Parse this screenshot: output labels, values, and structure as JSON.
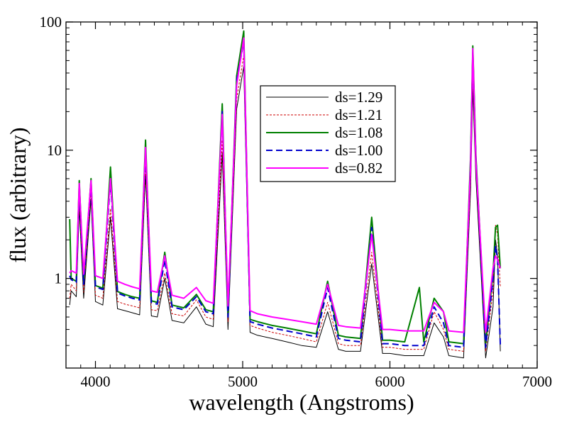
{
  "chart_data": {
    "type": "line",
    "title": "",
    "xlabel": "wavelength (Angstroms)",
    "ylabel": "flux (arbitrary)",
    "xlim": [
      3800,
      7000
    ],
    "ylim": [
      0.2,
      100
    ],
    "yscale": "log",
    "x_ticks": [
      4000,
      5000,
      6000,
      7000
    ],
    "x_tick_labels": [
      "4000",
      "5000",
      "6000",
      "7000"
    ],
    "y_ticks": [
      1,
      10,
      100
    ],
    "y_tick_labels": [
      "1",
      "10",
      "100"
    ],
    "grid": false,
    "legend_position": "top-center",
    "x": [
      3825,
      3835,
      3870,
      3890,
      3920,
      3970,
      4000,
      4050,
      4102,
      4150,
      4200,
      4250,
      4300,
      4340,
      4380,
      4420,
      4471,
      4520,
      4600,
      4686,
      4750,
      4800,
      4861,
      4900,
      4959,
      5007,
      5050,
      5100,
      5200,
      5300,
      5400,
      5500,
      5577,
      5650,
      5700,
      5800,
      5876,
      5950,
      6000,
      6100,
      6200,
      6230,
      6300,
      6364,
      6400,
      6500,
      6548,
      6563,
      6584,
      6650,
      6700,
      6717,
      6731,
      6750
    ],
    "series": [
      {
        "name": "ds=1.29",
        "color": "#000000",
        "dash": "",
        "values": [
          0.62,
          0.8,
          0.72,
          3.5,
          0.7,
          4.2,
          0.66,
          0.62,
          3.0,
          0.58,
          0.56,
          0.54,
          0.52,
          6.5,
          0.51,
          0.5,
          1.0,
          0.47,
          0.45,
          0.6,
          0.44,
          0.42,
          9.5,
          0.4,
          21.0,
          45.0,
          0.38,
          0.36,
          0.34,
          0.32,
          0.3,
          0.29,
          0.55,
          0.28,
          0.27,
          0.27,
          1.3,
          0.26,
          0.26,
          0.25,
          0.25,
          0.25,
          0.45,
          0.35,
          0.25,
          0.24,
          5.0,
          30.0,
          6.0,
          0.24,
          0.6,
          2.0,
          1.5,
          0.27
        ]
      },
      {
        "name": "ds=1.21",
        "color": "#cc0000",
        "dash": "3 2",
        "values": [
          0.7,
          0.9,
          0.8,
          4.0,
          0.78,
          4.8,
          0.74,
          0.7,
          3.5,
          0.66,
          0.63,
          0.61,
          0.59,
          7.5,
          0.57,
          0.56,
          1.1,
          0.53,
          0.51,
          0.68,
          0.5,
          0.48,
          12.0,
          0.46,
          25.0,
          55.0,
          0.43,
          0.41,
          0.38,
          0.36,
          0.34,
          0.32,
          0.65,
          0.31,
          0.3,
          0.3,
          1.6,
          0.29,
          0.29,
          0.28,
          0.28,
          0.28,
          0.55,
          0.4,
          0.28,
          0.27,
          6.0,
          40.0,
          7.5,
          0.27,
          0.8,
          2.6,
          2.2,
          0.85
        ]
      },
      {
        "name": "ds=1.08",
        "color": "#008000",
        "dash": "",
        "values": [
          2.9,
          1.0,
          0.95,
          5.8,
          0.92,
          6.0,
          0.88,
          0.84,
          7.4,
          0.79,
          0.75,
          0.72,
          0.7,
          12.0,
          0.67,
          0.65,
          1.6,
          0.62,
          0.59,
          0.75,
          0.57,
          0.55,
          23.0,
          0.52,
          38.0,
          85.0,
          0.48,
          0.46,
          0.43,
          0.41,
          0.39,
          0.37,
          0.95,
          0.36,
          0.35,
          0.34,
          3.0,
          0.33,
          0.33,
          0.32,
          0.85,
          0.32,
          0.7,
          0.55,
          0.32,
          0.31,
          9.0,
          65.0,
          9.0,
          0.31,
          1.1,
          2.5,
          2.6,
          1.2
        ]
      },
      {
        "name": "ds=1.00",
        "color": "#0000cc",
        "dash": "9 5",
        "values": [
          1.05,
          0.98,
          0.93,
          5.0,
          0.9,
          5.5,
          0.86,
          0.82,
          5.8,
          0.77,
          0.73,
          0.7,
          0.68,
          10.0,
          0.65,
          0.63,
          1.4,
          0.6,
          0.57,
          0.72,
          0.55,
          0.53,
          20.0,
          0.5,
          35.0,
          70.0,
          0.46,
          0.44,
          0.41,
          0.39,
          0.37,
          0.35,
          0.85,
          0.34,
          0.33,
          0.32,
          2.5,
          0.31,
          0.31,
          0.3,
          0.3,
          0.3,
          0.6,
          0.45,
          0.3,
          0.29,
          8.0,
          58.0,
          8.5,
          0.29,
          1.0,
          1.8,
          1.4,
          0.3
        ]
      },
      {
        "name": "ds=0.82",
        "color": "#ff00ff",
        "dash": "",
        "values": [
          1.1,
          1.15,
          1.1,
          5.5,
          1.08,
          5.8,
          1.05,
          1.0,
          6.0,
          0.95,
          0.9,
          0.86,
          0.83,
          10.5,
          0.8,
          0.78,
          1.5,
          0.74,
          0.7,
          0.85,
          0.67,
          0.64,
          19.0,
          0.61,
          32.0,
          75.0,
          0.56,
          0.53,
          0.5,
          0.48,
          0.46,
          0.44,
          0.9,
          0.43,
          0.42,
          0.41,
          2.2,
          0.4,
          0.4,
          0.39,
          0.39,
          0.39,
          0.65,
          0.55,
          0.39,
          0.38,
          7.5,
          62.0,
          8.0,
          0.38,
          1.2,
          1.5,
          1.4,
          1.2
        ]
      }
    ]
  }
}
